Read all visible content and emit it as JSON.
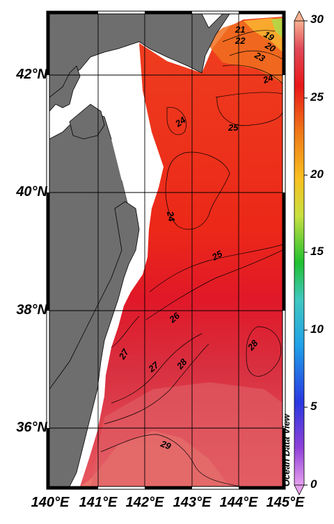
{
  "map": {
    "title": "",
    "variable_colormap": "ODV default (purple-blue-green-yellow-orange-red-pink)",
    "land_color": "#6e6e6e",
    "watermark": "Ocean Data View"
  },
  "axes": {
    "lat_labels": [
      "42°N",
      "40°N",
      "38°N",
      "36°N"
    ],
    "lon_labels": [
      "140°E",
      "141°E",
      "142°E",
      "143°E",
      "144°E",
      "145°E"
    ],
    "lat_range": [
      35,
      43
    ],
    "lon_range": [
      140,
      145
    ]
  },
  "colorbar": {
    "min": 0,
    "max": 30,
    "tick_labels": [
      "30",
      "25",
      "20",
      "15",
      "10",
      "5",
      "0"
    ],
    "colors": [
      "#d890e0",
      "#7a3cd0",
      "#2040e0",
      "#18b0e0",
      "#20c040",
      "#c0e040",
      "#f0c020",
      "#f08020",
      "#e82020",
      "#e04050",
      "#f0a080"
    ]
  },
  "contour_labels": [
    "21",
    "19",
    "22",
    "20",
    "23",
    "24",
    "24",
    "25",
    "24",
    "25",
    "26",
    "27",
    "27",
    "28",
    "28",
    "29"
  ]
}
